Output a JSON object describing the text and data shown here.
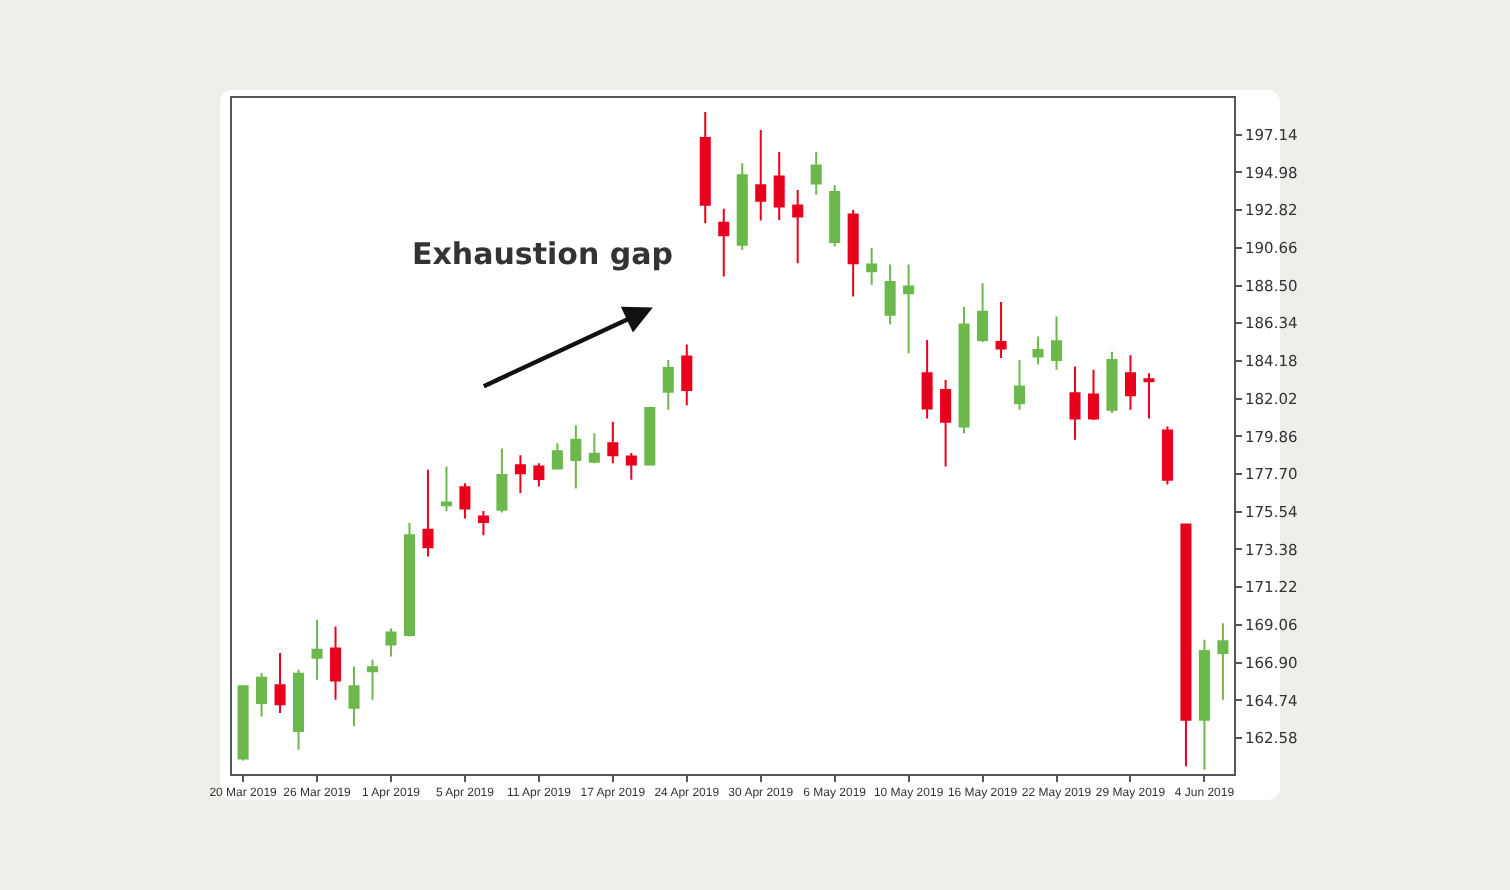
{
  "chart_data": {
    "type": "candlestick",
    "categories": [
      "20 Mar 2019",
      null,
      null,
      null,
      "26 Mar 2019",
      null,
      null,
      null,
      "1 Apr 2019",
      null,
      null,
      null,
      "5 Apr 2019",
      null,
      null,
      null,
      "11 Apr 2019",
      null,
      null,
      null,
      "17 Apr 2019",
      null,
      null,
      null,
      "24 Apr 2019",
      null,
      null,
      null,
      "30 Apr 2019",
      null,
      null,
      null,
      "6 May 2019",
      null,
      null,
      null,
      "10 May 2019",
      null,
      null,
      null,
      "16 May 2019",
      null,
      null,
      null,
      "22 May 2019",
      null,
      null,
      null,
      "29 May 2019",
      null,
      null,
      null,
      "4 Jun 2019",
      null
    ],
    "ohlc": [
      [
        161.41,
        165.6,
        161.3,
        165.54
      ],
      [
        164.58,
        166.3,
        163.82,
        166.03
      ],
      [
        165.61,
        167.45,
        164.01,
        164.51
      ],
      [
        162.98,
        166.49,
        161.91,
        166.26
      ],
      [
        167.18,
        169.35,
        165.92,
        167.64
      ],
      [
        167.71,
        168.97,
        164.77,
        165.88
      ],
      [
        164.32,
        166.68,
        163.25,
        165.54
      ],
      [
        166.41,
        167.06,
        164.77,
        166.64
      ],
      [
        167.94,
        168.86,
        167.25,
        168.63
      ],
      [
        168.48,
        174.89,
        168.4,
        174.2
      ],
      [
        174.51,
        177.94,
        172.98,
        173.51
      ],
      [
        175.92,
        178.13,
        175.58,
        176.07
      ],
      [
        176.95,
        177.18,
        175.16,
        175.73
      ],
      [
        175.27,
        175.58,
        174.2,
        174.96
      ],
      [
        175.65,
        179.16,
        175.5,
        177.64
      ],
      [
        178.21,
        178.78,
        176.61,
        177.75
      ],
      [
        178.13,
        178.32,
        176.99,
        177.41
      ],
      [
        178.02,
        179.47,
        177.94,
        179.01
      ],
      [
        178.51,
        180.5,
        176.87,
        179.66
      ],
      [
        178.4,
        180.04,
        178.32,
        178.86
      ],
      [
        179.47,
        180.69,
        178.32,
        178.78
      ],
      [
        178.7,
        178.9,
        177.37,
        178.25
      ],
      [
        178.25,
        181.55,
        178.2,
        181.49
      ],
      [
        182.41,
        184.24,
        181.38,
        183.78
      ],
      [
        184.43,
        185.12,
        181.64,
        182.52
      ],
      [
        196.95,
        198.44,
        192.06,
        193.13
      ],
      [
        192.1,
        192.9,
        189.01,
        191.38
      ],
      [
        190.84,
        195.5,
        190.54,
        194.81
      ],
      [
        194.24,
        197.41,
        192.22,
        193.36
      ],
      [
        194.74,
        196.15,
        192.25,
        193.02
      ],
      [
        193.09,
        193.97,
        189.77,
        192.45
      ],
      [
        194.35,
        196.15,
        193.7,
        195.38
      ],
      [
        190.99,
        194.24,
        190.73,
        193.86
      ],
      [
        192.56,
        192.83,
        187.87,
        189.77
      ],
      [
        189.32,
        190.65,
        188.55,
        189.7
      ],
      [
        186.83,
        189.7,
        186.26,
        188.7
      ],
      [
        188.06,
        189.7,
        184.62,
        188.44
      ],
      [
        183.48,
        185.38,
        180.88,
        181.45
      ],
      [
        182.52,
        183.09,
        178.13,
        180.69
      ],
      [
        180.42,
        187.29,
        180.04,
        186.26
      ],
      [
        185.38,
        188.63,
        185.27,
        186.99
      ],
      [
        185.27,
        187.56,
        184.35,
        184.89
      ],
      [
        181.76,
        184.24,
        181.38,
        182.71
      ],
      [
        184.43,
        185.58,
        183.97,
        184.81
      ],
      [
        184.24,
        186.72,
        183.67,
        185.31
      ],
      [
        182.33,
        183.86,
        179.66,
        180.88
      ],
      [
        182.25,
        183.67,
        180.8,
        180.88
      ],
      [
        181.38,
        184.7,
        181.19,
        184.24
      ],
      [
        183.48,
        184.51,
        181.38,
        182.22
      ],
      [
        183.13,
        183.48,
        180.88,
        183.02
      ],
      [
        180.19,
        180.42,
        177.1,
        177.37
      ],
      [
        174.81,
        174.85,
        160.96,
        163.63
      ],
      [
        163.63,
        168.21,
        160.77,
        167.56
      ],
      [
        167.45,
        169.16,
        164.77,
        168.13
      ]
    ],
    "colors": [
      "#6cb84c",
      "#6cb84c",
      "#e8001c",
      "#6cb84c",
      "#6cb84c",
      "#e8001c",
      "#6cb84c",
      "#6cb84c",
      "#6cb84c",
      "#6cb84c",
      "#e8001c",
      "#6cb84c",
      "#e8001c",
      "#e8001c",
      "#6cb84c",
      "#e8001c",
      "#e8001c",
      "#6cb84c",
      "#6cb84c",
      "#6cb84c",
      "#e8001c",
      "#e8001c",
      "#6cb84c",
      "#6cb84c",
      "#e8001c",
      "#e8001c",
      "#e8001c",
      "#6cb84c",
      "#e8001c",
      "#e8001c",
      "#e8001c",
      "#6cb84c",
      "#6cb84c",
      "#e8001c",
      "#6cb84c",
      "#6cb84c",
      "#6cb84c",
      "#e8001c",
      "#e8001c",
      "#6cb84c",
      "#6cb84c",
      "#e8001c",
      "#6cb84c",
      "#6cb84c",
      "#6cb84c",
      "#e8001c",
      "#e8001c",
      "#6cb84c",
      "#e8001c",
      "#e8001c",
      "#e8001c",
      "#e8001c",
      "#6cb84c",
      "#6cb84c"
    ],
    "ylim": [
      160.52,
      199.24
    ],
    "yticks": [
      162.58,
      164.74,
      {
        "value": 166.9,
        "label": "166.90"
      },
      169.06,
      171.22,
      173.38,
      175.54,
      {
        "value": 177.7,
        "label": "177.70"
      },
      179.86,
      182.02,
      184.18,
      186.34,
      {
        "value": 188.5,
        "label": "188.50"
      },
      190.66,
      192.82,
      194.98,
      197.14
    ],
    "annotations": [
      "Exhaustion gap"
    ],
    "grid": false
  }
}
